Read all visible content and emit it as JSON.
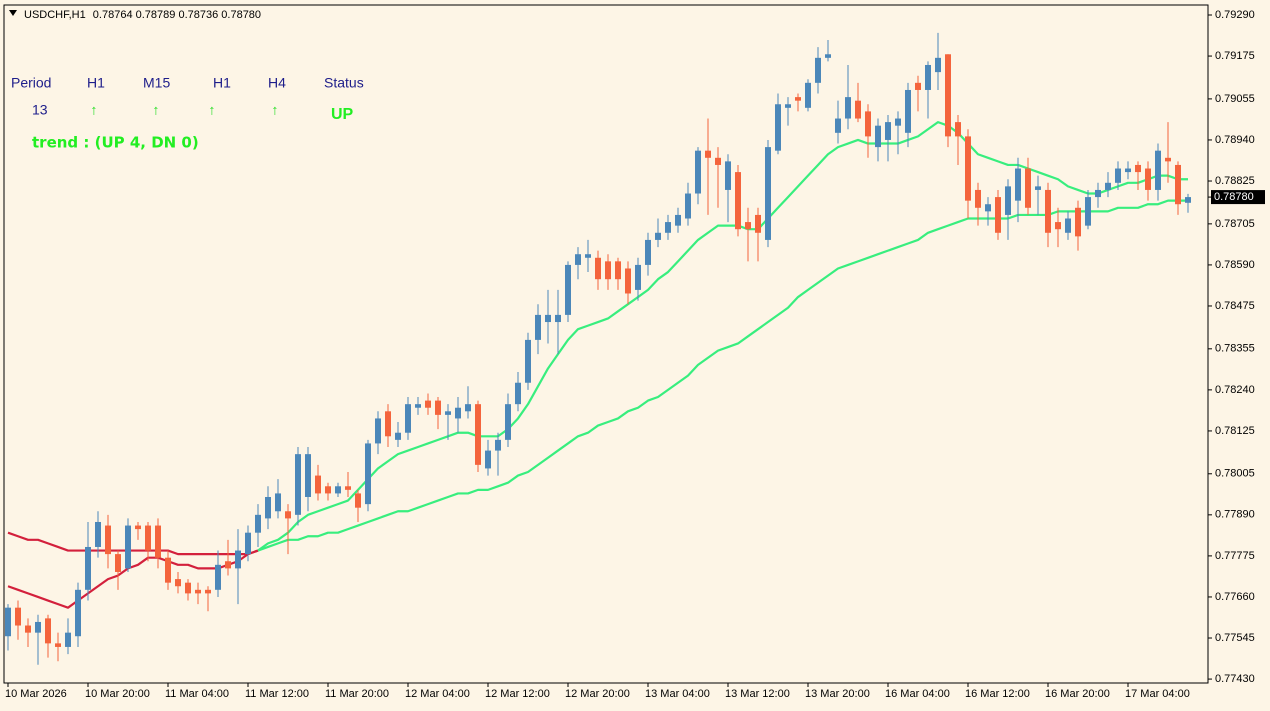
{
  "chart_data": {
    "type": "candlestick",
    "symbol": "USDCHF,H1",
    "header_prices": [
      "0.78764",
      "0.78789",
      "0.78736",
      "0.78780"
    ],
    "bull_color": "#4b87b9",
    "bear_color": "#f4643c",
    "background": "#fdf5e6",
    "categories": [
      "10 Mar 2026",
      null,
      null,
      null,
      null,
      null,
      null,
      null,
      "10 Mar 20:00",
      null,
      null,
      null,
      null,
      null,
      null,
      null,
      "11 Mar 04:00",
      null,
      null,
      null,
      null,
      null,
      null,
      null,
      "11 Mar 12:00",
      null,
      null,
      null,
      null,
      null,
      null,
      null,
      "11 Mar 20:00",
      null,
      null,
      null,
      null,
      null,
      null,
      null,
      "12 Mar 04:00",
      null,
      null,
      null,
      null,
      null,
      null,
      null,
      "12 Mar 12:00",
      null,
      null,
      null,
      null,
      null,
      null,
      null,
      "12 Mar 20:00",
      null,
      null,
      null,
      null,
      null,
      null,
      null,
      "13 Mar 04:00",
      null,
      null,
      null,
      null,
      null,
      null,
      null,
      "13 Mar 12:00",
      null,
      null,
      null,
      null,
      null,
      null,
      null,
      "13 Mar 20:00",
      null,
      null,
      null,
      null,
      null,
      null,
      null,
      "16 Mar 04:00",
      null,
      null,
      null,
      null,
      null,
      null,
      null,
      "16 Mar 12:00",
      null,
      null,
      null,
      null,
      null,
      null,
      null,
      "16 Mar 20:00",
      null,
      null,
      null,
      null,
      null,
      null,
      null,
      "17 Mar 04:00",
      null,
      null,
      null,
      null,
      null,
      null
    ],
    "ohlc": {
      "open": [
        0.7755,
        0.7763,
        0.7758,
        0.7756,
        0.776,
        0.7753,
        0.7752,
        0.7755,
        0.7768,
        0.778,
        0.7786,
        0.7778,
        0.7774,
        0.7786,
        0.7786,
        0.7786,
        0.7777,
        0.7771,
        0.777,
        0.7768,
        0.7768,
        0.7768,
        0.7776,
        0.7774,
        0.7778,
        0.7784,
        0.7788,
        0.779,
        0.779,
        0.7789,
        0.7794,
        0.78,
        0.7797,
        0.7795,
        0.7797,
        0.7795,
        0.7792,
        0.7809,
        0.7818,
        0.781,
        0.7812,
        0.7819,
        0.7821,
        0.7821,
        0.7817,
        0.7816,
        0.7818,
        0.782,
        0.7802,
        0.7807,
        0.781,
        0.782,
        0.7826,
        0.7838,
        0.7843,
        0.7843,
        0.7845,
        0.7859,
        0.7861,
        0.7861,
        0.786,
        0.786,
        0.7858,
        0.7852,
        0.7859,
        0.7866,
        0.7868,
        0.787,
        0.7872,
        0.7879,
        0.7891,
        0.7889,
        0.788,
        0.7885,
        0.7871,
        0.7873,
        0.7866,
        0.7891,
        0.7903,
        0.7906,
        0.7903,
        0.791,
        0.7917,
        0.7896,
        0.79,
        0.7905,
        0.7902,
        0.7892,
        0.7894,
        0.7898,
        0.7896,
        0.791,
        0.7908,
        0.7913,
        0.7918,
        0.7899,
        0.7895,
        0.788,
        0.7874,
        0.7878,
        0.7873,
        0.7877,
        0.7886,
        0.788,
        0.788,
        0.7871,
        0.7868,
        0.7875,
        0.787,
        0.7878,
        0.788,
        0.7882,
        0.7885,
        0.7887,
        0.7886,
        0.788,
        0.7889,
        0.7887,
        0.78764
      ],
      "high": [
        0.7764,
        0.7765,
        0.776,
        0.7761,
        0.7761,
        0.7756,
        0.776,
        0.777,
        0.7787,
        0.779,
        0.7789,
        0.7779,
        0.7788,
        0.7787,
        0.7787,
        0.7788,
        0.7779,
        0.7773,
        0.7771,
        0.777,
        0.7769,
        0.7779,
        0.7782,
        0.7785,
        0.7786,
        0.7792,
        0.7797,
        0.7799,
        0.7792,
        0.7808,
        0.7808,
        0.7803,
        0.7798,
        0.7798,
        0.7801,
        0.7796,
        0.781,
        0.7818,
        0.782,
        0.7815,
        0.7822,
        0.7822,
        0.7823,
        0.7822,
        0.782,
        0.7822,
        0.7825,
        0.7821,
        0.781,
        0.7812,
        0.7823,
        0.7829,
        0.784,
        0.7848,
        0.7852,
        0.7852,
        0.786,
        0.7864,
        0.7866,
        0.7863,
        0.7862,
        0.7861,
        0.786,
        0.7861,
        0.7868,
        0.7872,
        0.7873,
        0.7875,
        0.7882,
        0.7892,
        0.79,
        0.7892,
        0.789,
        0.7887,
        0.7875,
        0.7875,
        0.7894,
        0.7907,
        0.7906,
        0.7907,
        0.7911,
        0.792,
        0.7922,
        0.7905,
        0.7915,
        0.791,
        0.7904,
        0.79,
        0.7901,
        0.7902,
        0.791,
        0.7912,
        0.7916,
        0.7924,
        0.7918,
        0.7901,
        0.7897,
        0.7882,
        0.7878,
        0.788,
        0.7883,
        0.7889,
        0.7889,
        0.7884,
        0.7882,
        0.7875,
        0.7874,
        0.7877,
        0.788,
        0.7882,
        0.7885,
        0.7888,
        0.7888,
        0.7888,
        0.7888,
        0.7893,
        0.7899,
        0.7888,
        0.78789
      ],
      "low": [
        0.7751,
        0.7754,
        0.7752,
        0.7747,
        0.7749,
        0.7748,
        0.775,
        0.7752,
        0.7765,
        0.7777,
        0.7774,
        0.7768,
        0.7773,
        0.7782,
        0.7776,
        0.7774,
        0.7768,
        0.7767,
        0.7765,
        0.7764,
        0.7762,
        0.7766,
        0.7772,
        0.7764,
        0.7776,
        0.778,
        0.7785,
        0.7788,
        0.7778,
        0.7786,
        0.779,
        0.7793,
        0.7793,
        0.7794,
        0.7794,
        0.7787,
        0.779,
        0.7806,
        0.7808,
        0.7808,
        0.781,
        0.7817,
        0.7817,
        0.7813,
        0.781,
        0.7812,
        0.7816,
        0.7801,
        0.78,
        0.78,
        0.7808,
        0.7818,
        0.7824,
        0.7834,
        0.7837,
        0.7834,
        0.7843,
        0.7855,
        0.7857,
        0.7852,
        0.7852,
        0.7852,
        0.7848,
        0.7849,
        0.7856,
        0.7864,
        0.7866,
        0.7868,
        0.787,
        0.7876,
        0.7873,
        0.7875,
        0.7871,
        0.7867,
        0.786,
        0.786,
        0.7864,
        0.789,
        0.7898,
        0.7902,
        0.7902,
        0.7907,
        0.7916,
        0.7893,
        0.7897,
        0.7899,
        0.7889,
        0.7888,
        0.7888,
        0.789,
        0.7892,
        0.7902,
        0.79,
        0.7908,
        0.7892,
        0.7887,
        0.7872,
        0.787,
        0.787,
        0.7866,
        0.7866,
        0.7871,
        0.7873,
        0.7873,
        0.7864,
        0.7864,
        0.7866,
        0.7863,
        0.7869,
        0.7875,
        0.7878,
        0.788,
        0.7883,
        0.788,
        0.7877,
        0.7877,
        0.7882,
        0.7873,
        0.78736
      ],
      "close": [
        0.7763,
        0.7758,
        0.7756,
        0.7759,
        0.7753,
        0.7752,
        0.7756,
        0.7768,
        0.778,
        0.7787,
        0.7778,
        0.7773,
        0.7786,
        0.7785,
        0.7779,
        0.7777,
        0.777,
        0.7769,
        0.7767,
        0.7767,
        0.7767,
        0.7775,
        0.7774,
        0.7779,
        0.7784,
        0.7789,
        0.7794,
        0.7795,
        0.7788,
        0.7806,
        0.7806,
        0.7795,
        0.7795,
        0.7797,
        0.7796,
        0.7791,
        0.7809,
        0.7816,
        0.7811,
        0.7812,
        0.782,
        0.782,
        0.7819,
        0.7817,
        0.7818,
        0.7819,
        0.782,
        0.7803,
        0.7807,
        0.781,
        0.782,
        0.7826,
        0.7838,
        0.7845,
        0.7845,
        0.7845,
        0.7859,
        0.7862,
        0.7862,
        0.7855,
        0.7855,
        0.7855,
        0.7851,
        0.7859,
        0.7866,
        0.7868,
        0.7871,
        0.7873,
        0.7879,
        0.7891,
        0.7889,
        0.7887,
        0.7888,
        0.7869,
        0.7869,
        0.7868,
        0.7892,
        0.7904,
        0.7904,
        0.7905,
        0.791,
        0.7917,
        0.7918,
        0.79,
        0.7906,
        0.79,
        0.7895,
        0.7898,
        0.7899,
        0.79,
        0.7908,
        0.7908,
        0.7915,
        0.7917,
        0.7895,
        0.7895,
        0.7877,
        0.7875,
        0.7876,
        0.7868,
        0.7881,
        0.7886,
        0.7875,
        0.7881,
        0.7868,
        0.7869,
        0.7872,
        0.7867,
        0.7878,
        0.788,
        0.7882,
        0.7886,
        0.7886,
        0.7885,
        0.788,
        0.7891,
        0.7888,
        0.7876,
        0.7878
      ]
    },
    "series": [
      {
        "color": "#d3203c",
        "values": [
          0.7769,
          0.7768,
          0.7767,
          0.7766,
          0.7765,
          0.7764,
          0.7763,
          0.7765,
          0.7767,
          0.7769,
          0.7771,
          0.7772,
          0.7774,
          0.7775,
          0.7777,
          0.7777,
          0.7776,
          0.7775,
          0.7775,
          0.7774,
          0.7774,
          0.7774,
          0.7775,
          0.7776,
          0.7778,
          0.7779,
          null,
          null,
          null,
          null,
          null,
          null,
          null,
          null,
          null,
          null,
          null,
          null,
          null,
          null,
          null,
          null,
          null,
          null,
          null,
          null,
          null,
          null,
          null,
          null,
          null,
          null,
          null,
          null,
          null,
          null,
          null,
          null,
          null,
          null,
          null,
          null,
          null,
          null,
          null,
          null,
          null,
          null,
          null,
          null,
          null,
          null,
          null,
          null,
          null,
          null,
          null,
          null,
          null,
          null,
          null,
          null,
          null,
          null,
          null,
          null,
          null,
          null,
          null,
          null,
          null,
          null,
          null,
          null,
          null,
          null,
          null,
          null,
          null,
          null,
          null,
          null,
          null,
          null,
          null,
          null,
          null,
          null,
          null,
          null,
          null,
          null,
          null,
          null,
          null,
          null,
          null,
          null,
          null
        ]
      },
      {
        "color": "#d3203c",
        "values": [
          0.7784,
          0.7783,
          0.7782,
          0.7782,
          0.7781,
          0.778,
          0.7779,
          0.7779,
          0.7779,
          0.7779,
          0.7779,
          0.7779,
          0.7779,
          0.7779,
          0.7779,
          0.7779,
          0.7779,
          0.7778,
          0.7778,
          0.7778,
          0.7778,
          0.7778,
          0.7778,
          0.7778,
          0.7778,
          0.7779,
          null,
          null,
          null,
          null,
          null,
          null,
          null,
          null,
          null,
          null,
          null,
          null,
          null,
          null,
          null,
          null,
          null,
          null,
          null,
          null,
          null,
          null,
          null,
          null,
          null,
          null,
          null,
          null,
          null,
          null,
          null,
          null,
          null,
          null,
          null,
          null,
          null,
          null,
          null,
          null,
          null,
          null,
          null,
          null,
          null,
          null,
          null,
          null,
          null,
          null,
          null,
          null,
          null,
          null,
          null,
          null,
          null,
          null,
          null,
          null,
          null,
          null,
          null,
          null,
          null,
          null,
          null,
          null,
          null,
          null,
          null,
          null,
          null,
          null,
          null,
          null,
          null,
          null,
          null,
          null,
          null,
          null,
          null,
          null,
          null,
          null,
          null,
          null,
          null,
          null,
          null,
          null,
          null
        ]
      },
      {
        "color": "#38ee7e",
        "values": [
          null,
          null,
          null,
          null,
          null,
          null,
          null,
          null,
          null,
          null,
          null,
          null,
          null,
          null,
          null,
          null,
          null,
          null,
          null,
          null,
          null,
          null,
          null,
          null,
          null,
          0.7779,
          0.7781,
          0.7782,
          0.7784,
          0.7787,
          0.7789,
          0.779,
          0.7791,
          0.7792,
          0.7793,
          0.7796,
          0.7799,
          0.7802,
          0.7804,
          0.7806,
          0.7807,
          0.7808,
          0.7809,
          0.781,
          0.7811,
          0.7812,
          0.7812,
          0.7811,
          0.7811,
          0.7811,
          0.7813,
          0.7816,
          0.782,
          0.7825,
          0.783,
          0.7834,
          0.7838,
          0.7841,
          0.7842,
          0.7843,
          0.7844,
          0.7846,
          0.7848,
          0.785,
          0.7852,
          0.7855,
          0.7857,
          0.786,
          0.7863,
          0.7866,
          0.7868,
          0.787,
          0.787,
          0.787,
          0.7869,
          0.7869,
          0.7872,
          0.7875,
          0.7878,
          0.7881,
          0.7884,
          0.7887,
          0.789,
          0.7892,
          0.7893,
          0.7894,
          0.7893,
          0.7893,
          0.7893,
          0.7893,
          0.7894,
          0.7895,
          0.7897,
          0.7899,
          0.7898,
          0.7896,
          0.7893,
          0.789,
          0.7889,
          0.7888,
          0.7887,
          0.7887,
          0.7886,
          0.7885,
          0.7884,
          0.7883,
          0.7881,
          0.788,
          0.7879,
          0.7879,
          0.788,
          0.7881,
          0.7882,
          0.7882,
          0.7883,
          0.7884,
          0.7884,
          0.7883,
          0.7883
        ]
      },
      {
        "color": "#38ee7e",
        "values": [
          null,
          null,
          null,
          null,
          null,
          null,
          null,
          null,
          null,
          null,
          null,
          null,
          null,
          null,
          null,
          null,
          null,
          null,
          null,
          null,
          null,
          null,
          null,
          null,
          null,
          0.7779,
          0.778,
          0.7781,
          0.7782,
          0.7782,
          0.7783,
          0.7783,
          0.7784,
          0.7784,
          0.7785,
          0.7786,
          0.7787,
          0.7788,
          0.7789,
          0.779,
          0.779,
          0.7791,
          0.7792,
          0.7793,
          0.7794,
          0.7795,
          0.7795,
          0.7796,
          0.7796,
          0.7797,
          0.7798,
          0.78,
          0.7801,
          0.7803,
          0.7805,
          0.7807,
          0.7809,
          0.7811,
          0.7812,
          0.7814,
          0.7815,
          0.7816,
          0.7818,
          0.7819,
          0.7821,
          0.7822,
          0.7824,
          0.7826,
          0.7828,
          0.7831,
          0.7833,
          0.7835,
          0.7836,
          0.7837,
          0.7839,
          0.7841,
          0.7843,
          0.7845,
          0.7847,
          0.785,
          0.7852,
          0.7854,
          0.7856,
          0.7858,
          0.7859,
          0.786,
          0.7861,
          0.7862,
          0.7863,
          0.7864,
          0.7865,
          0.7866,
          0.7868,
          0.7869,
          0.787,
          0.7871,
          0.7872,
          0.7872,
          0.7872,
          0.7872,
          0.7872,
          0.7873,
          0.7873,
          0.7873,
          0.7873,
          0.7874,
          0.7874,
          0.7874,
          0.7874,
          0.7874,
          0.7874,
          0.7875,
          0.7875,
          0.7875,
          0.7876,
          0.7876,
          0.7877,
          0.7877,
          0.7877
        ]
      }
    ],
    "ylim": [
      0.77419,
      0.79318
    ],
    "yticks": [
      {
        "value": 0.7929,
        "label": "0.79290"
      },
      0.79175,
      0.79055,
      {
        "value": 0.7894,
        "label": "0.78940"
      },
      0.78825,
      0.78705,
      {
        "value": 0.7859,
        "label": "0.78590"
      },
      0.78475,
      0.78355,
      {
        "value": 0.7824,
        "label": "0.78240"
      },
      0.78125,
      0.78005,
      {
        "value": 0.7789,
        "label": "0.77890"
      },
      0.77775,
      {
        "value": 0.7766,
        "label": "0.77660"
      },
      0.77545,
      {
        "value": 0.7743,
        "label": "0.77430"
      }
    ],
    "last_price": {
      "value": 0.7878,
      "label": "0.78780"
    },
    "indicator": {
      "headers": [
        "Period",
        "H1",
        "M15",
        "H1",
        "H4",
        "Status"
      ],
      "row": [
        13,
        "↑",
        "↑",
        "↑",
        "↑",
        "UP"
      ],
      "trend": "trend : (UP 4, DN 0)"
    }
  }
}
